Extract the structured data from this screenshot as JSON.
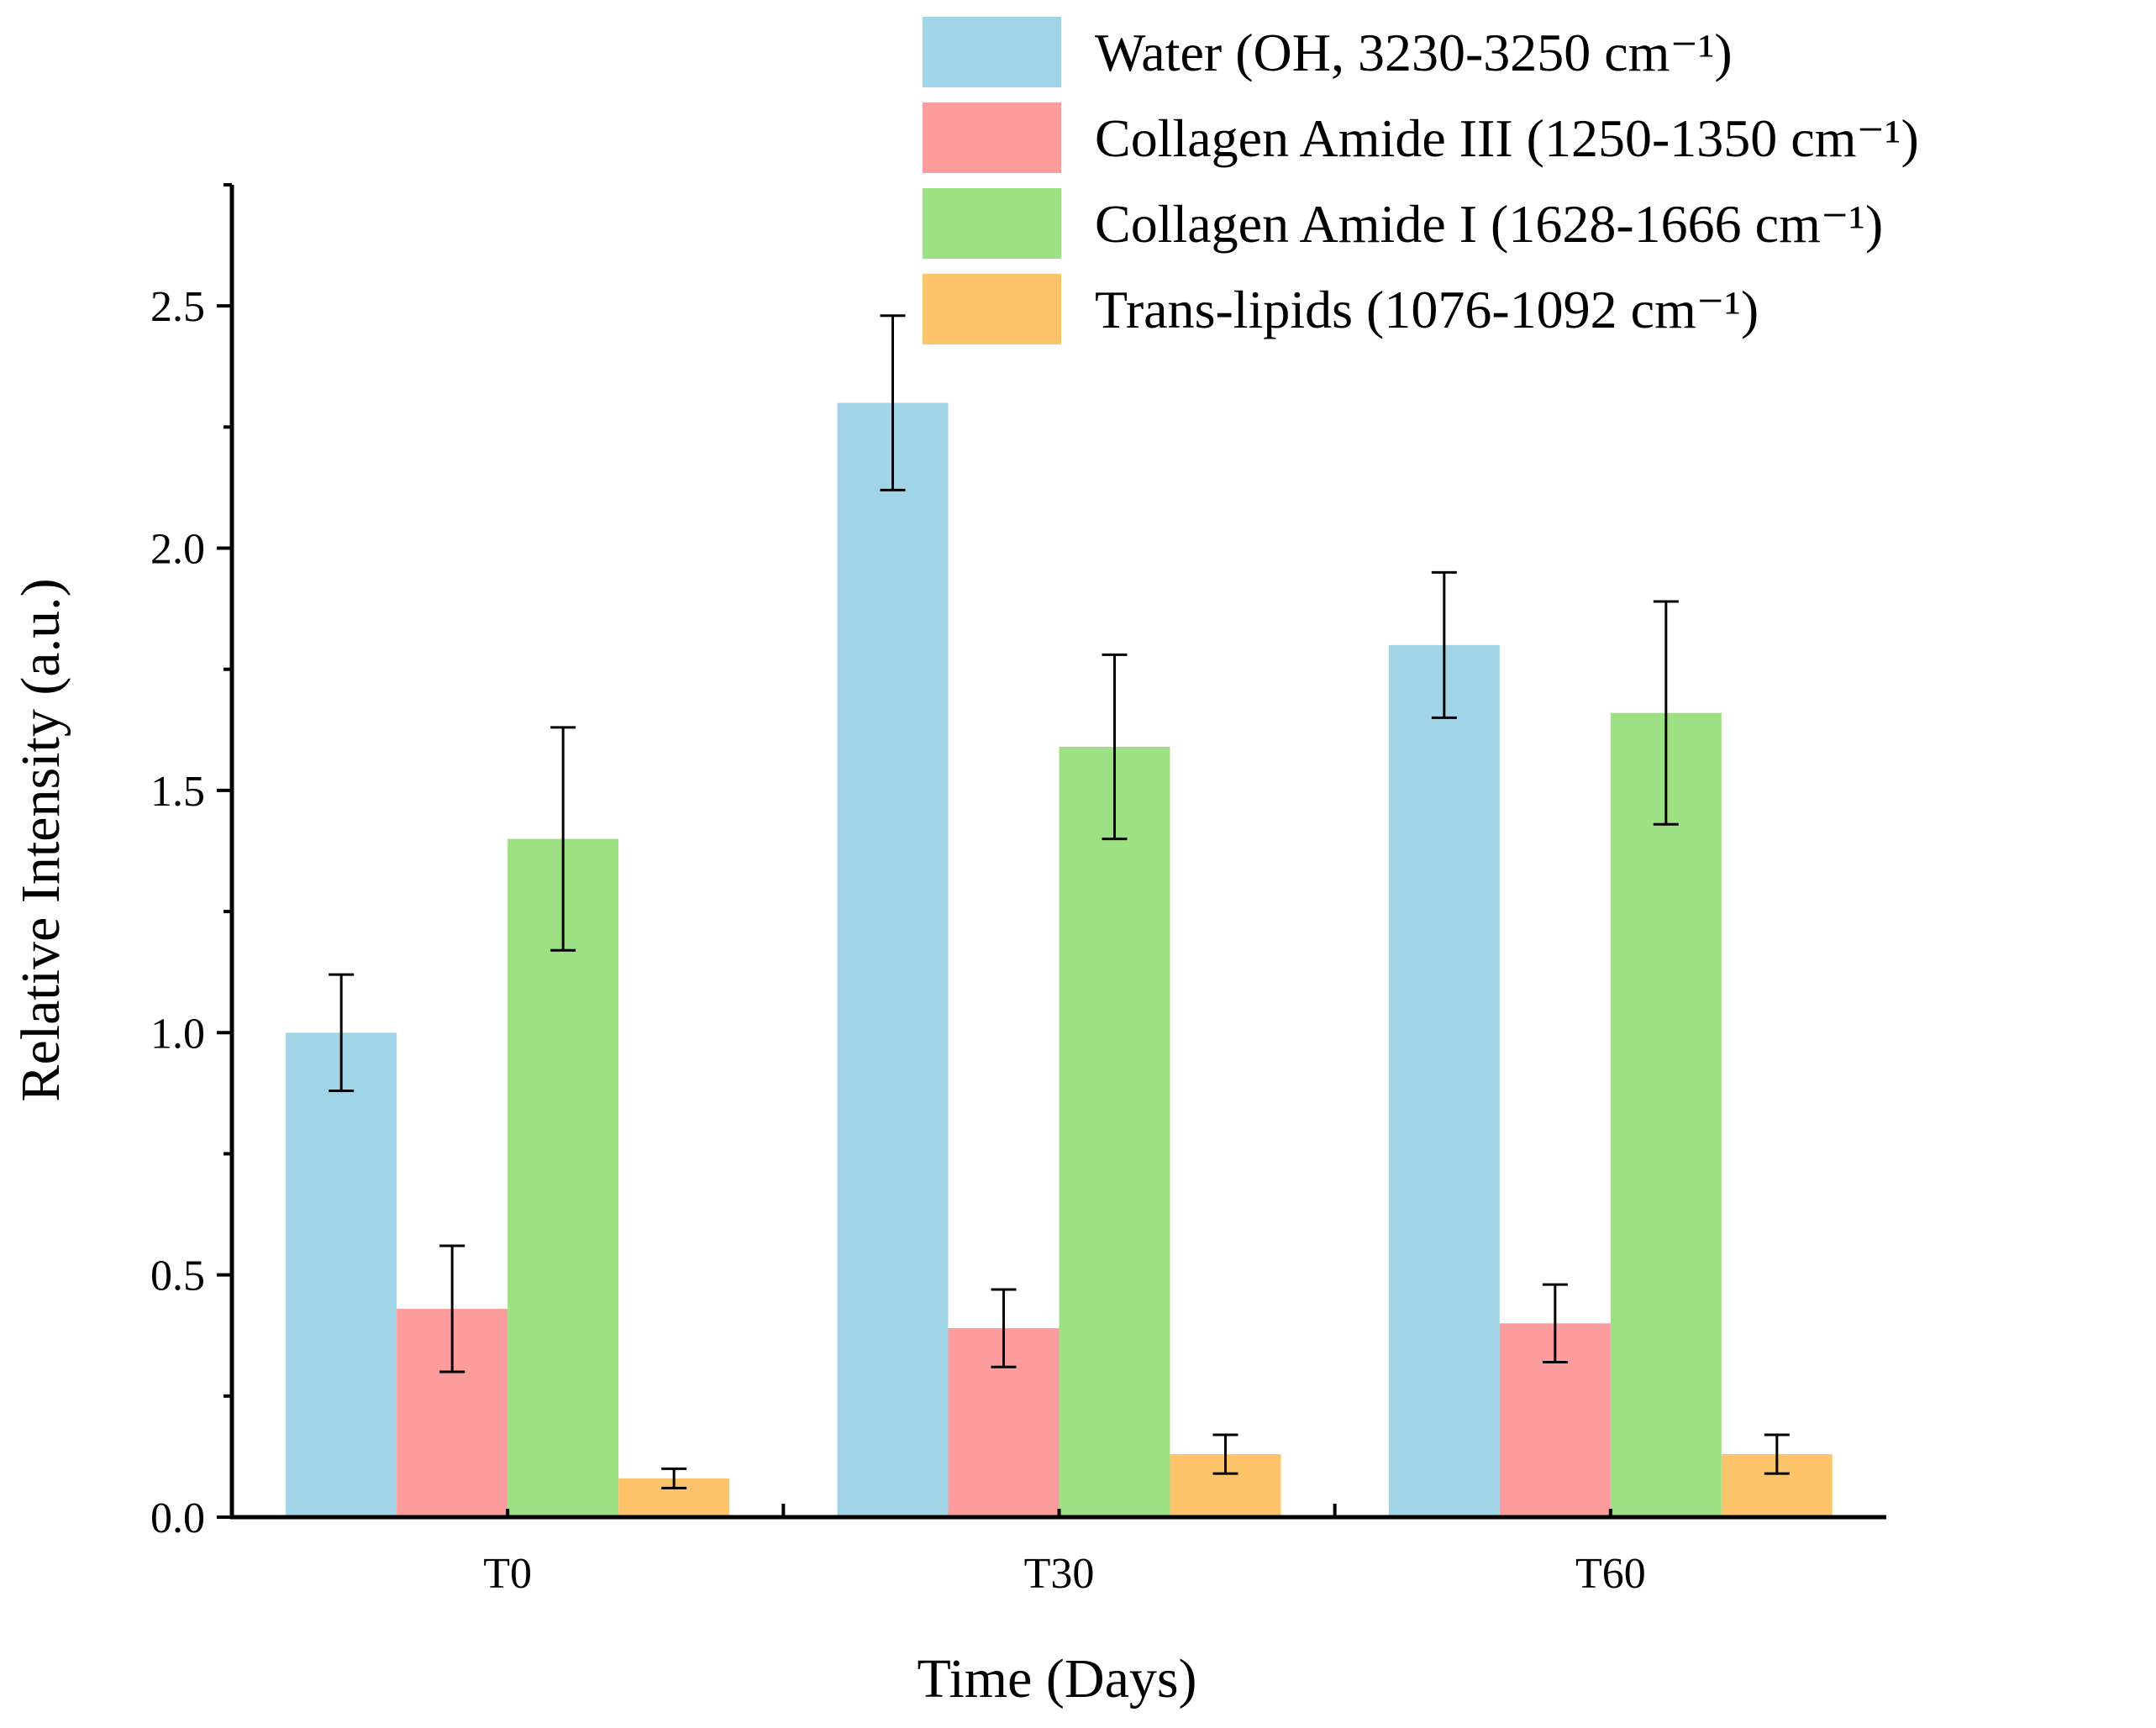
{
  "chart_data": {
    "type": "bar",
    "title": "",
    "xlabel": "Time (Days)",
    "ylabel": "Relative Intensity (a.u.)",
    "categories": [
      "T0",
      "T30",
      "T60"
    ],
    "ylim": [
      0,
      2.75
    ],
    "yticks": [
      0.0,
      0.5,
      1.0,
      1.5,
      2.0,
      2.5
    ],
    "ytick_labels": [
      "0.0",
      "0.5",
      "1.0",
      "1.5",
      "2.0",
      "2.5"
    ],
    "grid": false,
    "legend_position": "top-right",
    "series": [
      {
        "name": "Water (OH, 3230-3250 cm⁻¹)",
        "color": "#a2d4e8",
        "values": [
          1.0,
          2.3,
          1.8
        ],
        "errors": [
          0.12,
          0.18,
          0.15
        ]
      },
      {
        "name": "Collagen Amide III (1250-1350 cm⁻¹)",
        "color": "#fc9c9c",
        "values": [
          0.43,
          0.39,
          0.4
        ],
        "errors": [
          0.13,
          0.08,
          0.08
        ]
      },
      {
        "name": "Collagen Amide I (1628-1666 cm⁻¹)",
        "color": "#9ee084",
        "values": [
          1.4,
          1.59,
          1.66
        ],
        "errors": [
          0.23,
          0.19,
          0.23
        ]
      },
      {
        "name": "Trans-lipids (1076-1092 cm⁻¹)",
        "color": "#fdc46c",
        "values": [
          0.08,
          0.13,
          0.13
        ],
        "errors": [
          0.02,
          0.04,
          0.04
        ]
      }
    ]
  }
}
